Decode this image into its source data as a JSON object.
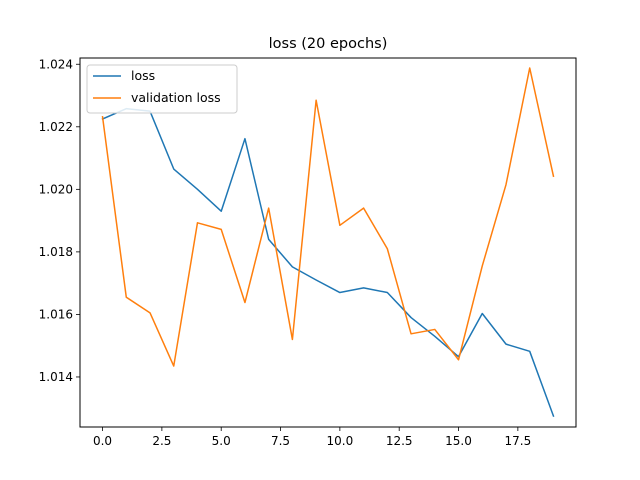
{
  "chart_data": {
    "type": "line",
    "title": "loss (20 epochs)",
    "xlabel": "",
    "ylabel": "",
    "xlim": [
      -0.95,
      19.95
    ],
    "ylim": [
      1.0124,
      1.0242
    ],
    "xticks": [
      0.0,
      2.5,
      5.0,
      7.5,
      10.0,
      12.5,
      15.0,
      17.5
    ],
    "xtick_labels": [
      "0.0",
      "2.5",
      "5.0",
      "7.5",
      "10.0",
      "12.5",
      "15.0",
      "17.5"
    ],
    "yticks": [
      1.014,
      1.016,
      1.018,
      1.02,
      1.022,
      1.024
    ],
    "ytick_labels": [
      "1.014",
      "1.016",
      "1.018",
      "1.020",
      "1.022",
      "1.024"
    ],
    "grid": false,
    "legend_position": "top-left",
    "x": [
      0,
      1,
      2,
      3,
      4,
      5,
      6,
      7,
      8,
      9,
      10,
      11,
      12,
      13,
      14,
      15,
      16,
      17,
      18,
      19
    ],
    "series": [
      {
        "name": "loss",
        "color": "#1f77b4",
        "values": [
          1.02225,
          1.02258,
          1.0225,
          1.02065,
          1.02,
          1.0193,
          1.02162,
          1.0184,
          1.01752,
          1.0171,
          1.0167,
          1.01685,
          1.0167,
          1.0159,
          1.0153,
          1.01465,
          1.01603,
          1.01505,
          1.01482,
          1.01275
        ]
      },
      {
        "name": "validation loss",
        "color": "#ff7f0e",
        "values": [
          1.02232,
          1.01655,
          1.01605,
          1.01435,
          1.01893,
          1.01872,
          1.01638,
          1.0194,
          1.0152,
          1.02285,
          1.01885,
          1.0194,
          1.0181,
          1.01538,
          1.01552,
          1.01455,
          1.01755,
          1.02015,
          1.02388,
          1.02042
        ]
      }
    ]
  }
}
